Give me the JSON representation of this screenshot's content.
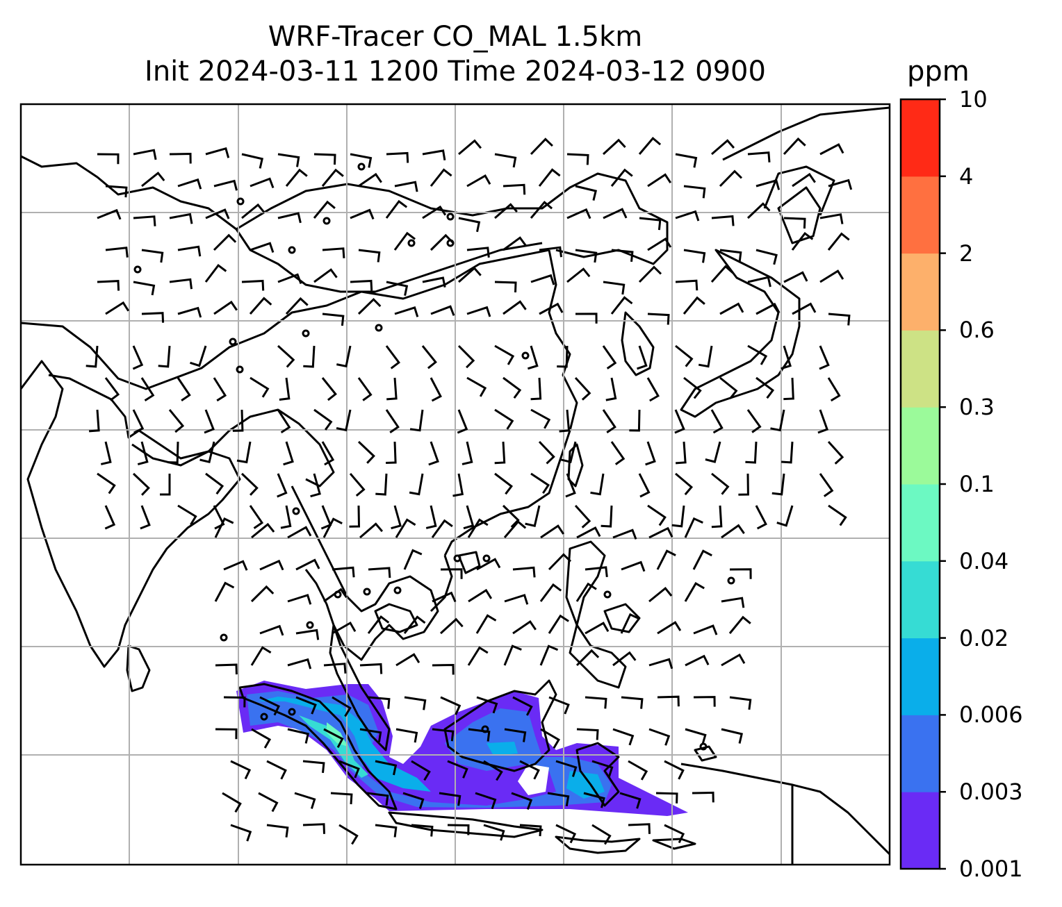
{
  "title": {
    "line1": "WRF-Tracer CO_MAL 1.5km",
    "line2": "Init 2024-03-11 1200 Time 2024-03-12 0900"
  },
  "colorbar": {
    "unit": "ppm",
    "ticks": [
      "0.001",
      "0.003",
      "0.006",
      "0.02",
      "0.04",
      "0.1",
      "0.3",
      "0.6",
      "2",
      "4",
      "10"
    ],
    "colors": [
      "#6a2bf5",
      "#3a72f0",
      "#0aaeea",
      "#36dcd4",
      "#6cf9c2",
      "#9bfa9a",
      "#cde285",
      "#fdb06b",
      "#ff7040",
      "#ff2a16"
    ]
  },
  "map": {
    "projection_grid": "on",
    "plume_colors": [
      "#6a2bf5",
      "#3a72f0",
      "#0aaeea",
      "#36dcd4",
      "#6cf9c2"
    ]
  }
}
